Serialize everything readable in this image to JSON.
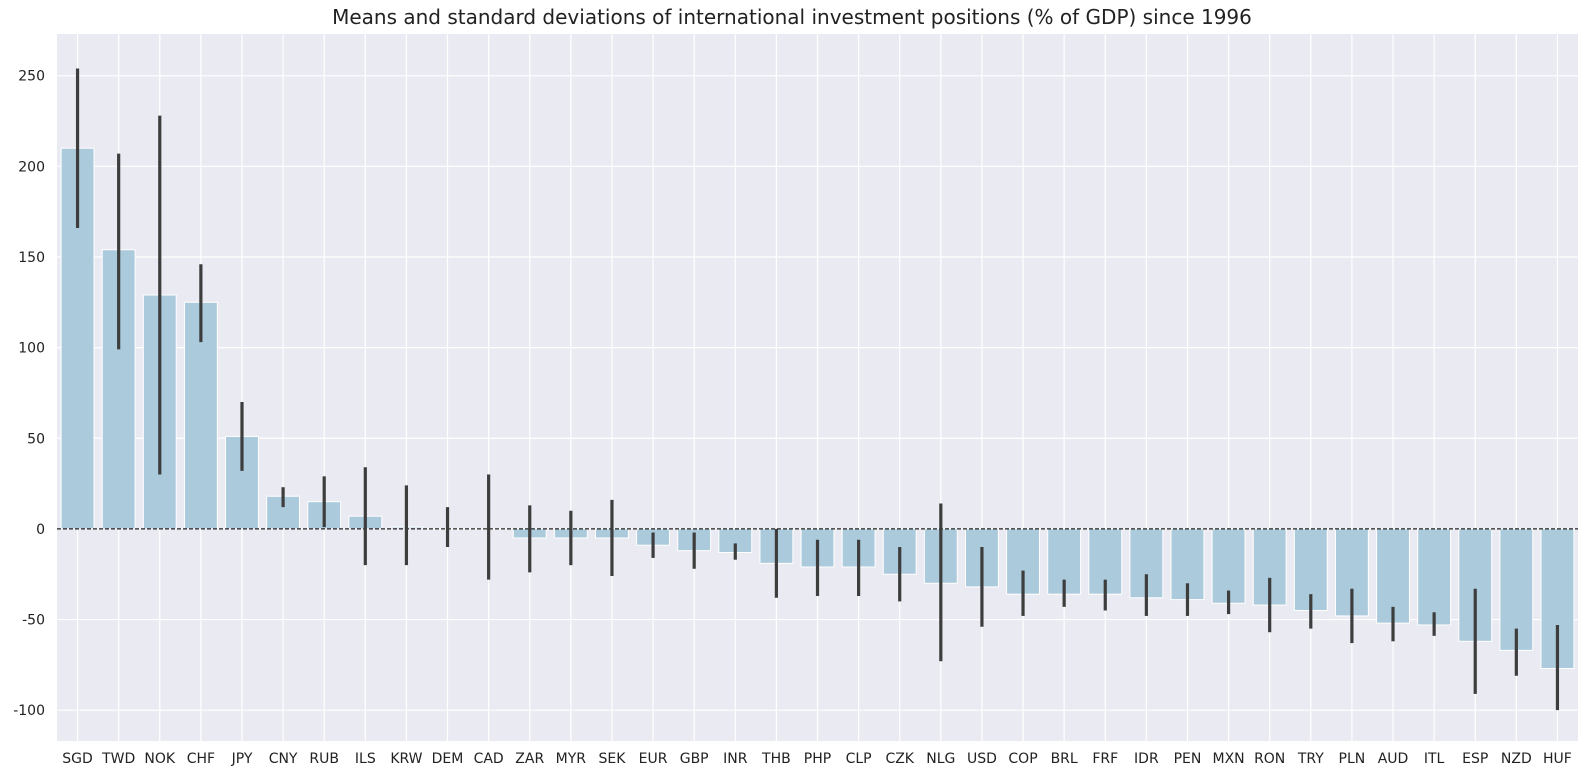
{
  "chart_data": {
    "type": "bar",
    "title": "Means and standard deviations of international investment positions (% of GDP) since 1996",
    "xlabel": "",
    "ylabel": "",
    "ylim": [
      -117,
      273
    ],
    "yticks": [
      -100,
      -50,
      0,
      50,
      100,
      150,
      200,
      250
    ],
    "grid": true,
    "reference_line": 0,
    "colors": {
      "bar": "#abcadb",
      "error_bar": "#3d3d3d",
      "background": "#eaeaf2",
      "grid": "#ffffff",
      "reference_line": "#222222"
    },
    "categories": [
      "SGD",
      "TWD",
      "NOK",
      "CHF",
      "JPY",
      "CNY",
      "RUB",
      "ILS",
      "KRW",
      "DEM",
      "CAD",
      "ZAR",
      "MYR",
      "SEK",
      "EUR",
      "GBP",
      "INR",
      "THB",
      "PHP",
      "CLP",
      "CZK",
      "NLG",
      "USD",
      "COP",
      "BRL",
      "FRF",
      "IDR",
      "PEN",
      "MXN",
      "RON",
      "TRY",
      "PLN",
      "AUD",
      "ITL",
      "ESP",
      "NZD",
      "HUF"
    ],
    "values": [
      210,
      154,
      129,
      125,
      51,
      18,
      15,
      7,
      1,
      0,
      0,
      -5,
      -5,
      -5,
      -9,
      -12,
      -13,
      -19,
      -21,
      -21,
      -25,
      -30,
      -32,
      -36,
      -36,
      -36,
      -38,
      -39,
      -41,
      -42,
      -45,
      -48,
      -52,
      -53,
      -62,
      -67,
      -77
    ],
    "error_low": [
      166,
      99,
      30,
      103,
      32,
      12,
      1,
      -20,
      -20,
      -10,
      -28,
      -24,
      -20,
      -26,
      -16,
      -22,
      -17,
      -38,
      -37,
      -37,
      -40,
      -73,
      -54,
      -48,
      -43,
      -45,
      -48,
      -48,
      -47,
      -57,
      -55,
      -63,
      -62,
      -59,
      -91,
      -81,
      -100
    ],
    "error_high": [
      254,
      207,
      228,
      146,
      70,
      23,
      29,
      34,
      24,
      12,
      30,
      13,
      10,
      16,
      -2,
      -2,
      -8,
      0,
      -6,
      -6,
      -10,
      14,
      -10,
      -23,
      -28,
      -28,
      -25,
      -30,
      -34,
      -27,
      -36,
      -33,
      -43,
      -46,
      -33,
      -55,
      -53
    ]
  }
}
